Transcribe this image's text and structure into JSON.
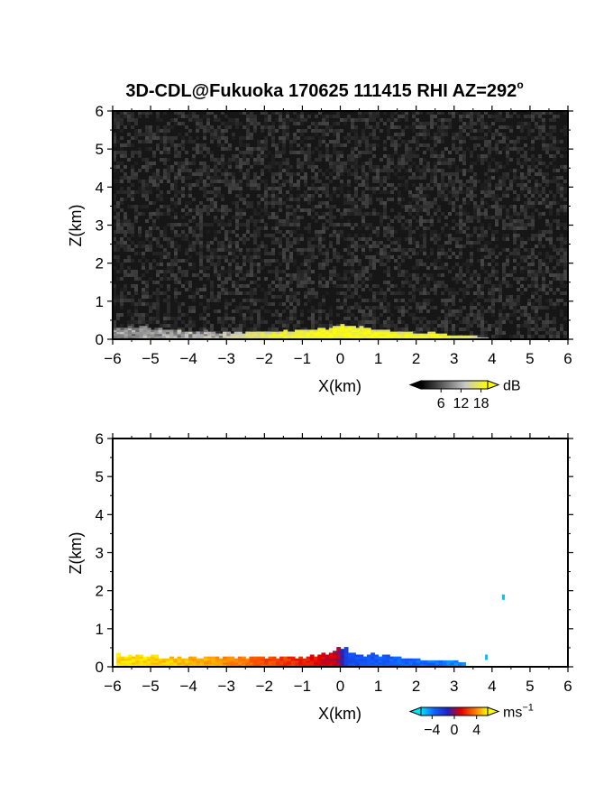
{
  "chart_data": [
    {
      "type": "heatmap",
      "title": "3D-CDL@Fukuoka 170625 111415 RHI AZ=292",
      "title_superscript": "o",
      "xlabel": "X(km)",
      "ylabel": "Z(km)",
      "xlim": [
        -6,
        6
      ],
      "ylim": [
        0,
        6
      ],
      "xticks": [
        -6,
        -5,
        -4,
        -3,
        -2,
        -1,
        0,
        1,
        2,
        3,
        4,
        5,
        6
      ],
      "yticks": [
        0,
        1,
        2,
        3,
        4,
        5,
        6
      ],
      "background": "noise",
      "background_color": "#161616",
      "colorbar": {
        "unit": "dB",
        "ticks": [
          6,
          12,
          18
        ],
        "colormap": "gray-to-yellow",
        "colors": [
          "#000000",
          "#606060",
          "#c8c8c8",
          "#ffff00"
        ]
      },
      "echo_profile": {
        "description": "signal thickness (km) of the low-level layer vs X",
        "x": [
          -6,
          -5.5,
          -5,
          -4.5,
          -4,
          -3.5,
          -3,
          -2.5,
          -2,
          -1.5,
          -1,
          -0.5,
          -0.2,
          0,
          0.2,
          0.5,
          1,
          1.5,
          2,
          2.5,
          3,
          3.5,
          3.8
        ],
        "top": [
          0.3,
          0.32,
          0.3,
          0.25,
          0.22,
          0.2,
          0.2,
          0.19,
          0.2,
          0.2,
          0.24,
          0.28,
          0.33,
          0.45,
          0.35,
          0.3,
          0.26,
          0.2,
          0.18,
          0.16,
          0.12,
          0.08,
          0.06
        ],
        "intensity": [
          0.45,
          0.5,
          0.55,
          0.6,
          0.65,
          0.7,
          0.78,
          0.85,
          0.9,
          0.95,
          1.0,
          1.0,
          1.0,
          1.0,
          1.0,
          1.0,
          1.0,
          1.0,
          1.0,
          1.0,
          1.0,
          0.9,
          0.6
        ]
      }
    },
    {
      "type": "heatmap",
      "title": "",
      "xlabel": "X(km)",
      "ylabel": "Z(km)",
      "xlim": [
        -6,
        6
      ],
      "ylim": [
        0,
        6
      ],
      "xticks": [
        -6,
        -5,
        -4,
        -3,
        -2,
        -1,
        0,
        1,
        2,
        3,
        4,
        5,
        6
      ],
      "yticks": [
        0,
        1,
        2,
        3,
        4,
        5,
        6
      ],
      "background_color": "#ffffff",
      "colorbar": {
        "unit": "ms",
        "unit_superscript": "−1",
        "ticks": [
          -4,
          0,
          4
        ],
        "tick_labels": [
          "−4",
          "0",
          "4"
        ],
        "colormap": "cyan-blue-red-yellow",
        "colors": [
          "#00e5ff",
          "#1060ff",
          "#2020c0",
          "#e00000",
          "#ff7000",
          "#ffff00"
        ]
      },
      "velocity_profile": {
        "description": "radial velocity (m/s) and layer top (km) vs X",
        "x": [
          -5.9,
          -5.5,
          -5,
          -4.5,
          -4,
          -3.5,
          -3,
          -2.5,
          -2,
          -1.5,
          -1,
          -0.5,
          -0.2,
          -0.05,
          0.05,
          0.2,
          0.5,
          1,
          1.5,
          2,
          2.5,
          3,
          3.2
        ],
        "top": [
          0.3,
          0.28,
          0.26,
          0.24,
          0.22,
          0.22,
          0.22,
          0.22,
          0.22,
          0.22,
          0.25,
          0.32,
          0.4,
          0.48,
          0.5,
          0.38,
          0.32,
          0.28,
          0.24,
          0.2,
          0.16,
          0.14,
          0.1
        ],
        "velocity": [
          4.5,
          4.5,
          4.4,
          4.2,
          4.0,
          3.8,
          3.4,
          3.0,
          2.4,
          2.0,
          1.6,
          1.0,
          0.6,
          0.2,
          -2.0,
          -2.5,
          -2.6,
          -2.8,
          -3.0,
          -3.0,
          -3.2,
          -3.5,
          -3.8
        ]
      },
      "scattered_points": [
        {
          "x": 3.85,
          "z": 0.25,
          "velocity": -4.5
        },
        {
          "x": 4.3,
          "z": 1.83,
          "velocity": -4.5
        }
      ]
    }
  ]
}
